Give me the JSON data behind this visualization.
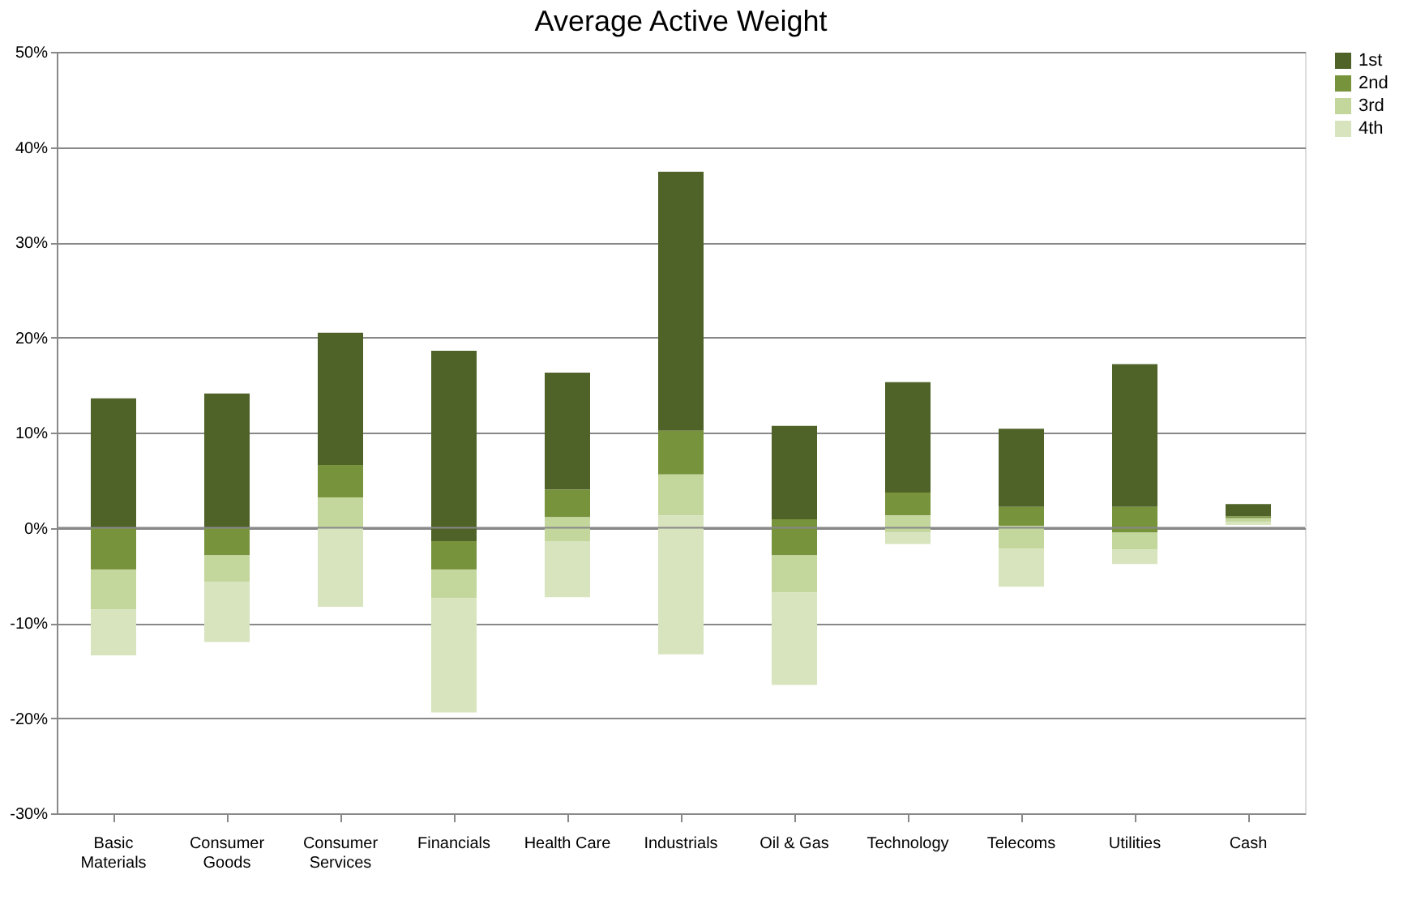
{
  "chart_data": {
    "type": "bar",
    "title": "Average Active Weight",
    "categories": [
      "Basic Materials",
      "Consumer Goods",
      "Consumer Services",
      "Financials",
      "Health Care",
      "Industrials",
      "Oil & Gas",
      "Technology",
      "Telecoms",
      "Utilities",
      "Cash"
    ],
    "series": [
      {
        "name": "1st",
        "color": "#4f6228",
        "base": [
          0,
          0,
          6.6,
          -1.4,
          4.0,
          10.2,
          0.9,
          3.7,
          2.2,
          2.2,
          1.2
        ],
        "values": [
          13.6,
          14.1,
          13.9,
          20.0,
          12.3,
          27.2,
          9.8,
          11.6,
          8.2,
          15.0,
          1.3
        ]
      },
      {
        "name": "2nd",
        "color": "#77933c",
        "base": [
          -4.4,
          -2.9,
          3.2,
          -4.4,
          1.1,
          5.6,
          -2.9,
          1.3,
          0.2,
          -0.5,
          1.0
        ],
        "values": [
          4.4,
          2.9,
          3.4,
          3.0,
          2.9,
          4.6,
          3.8,
          2.4,
          2.0,
          2.7,
          0.2
        ]
      },
      {
        "name": "3rd",
        "color": "#c3d69b",
        "base": [
          -8.6,
          -5.7,
          0,
          -7.4,
          -1.4,
          1.3,
          -6.8,
          -0.5,
          -2.2,
          -2.3,
          0.6
        ],
        "values": [
          4.2,
          2.8,
          3.2,
          3.0,
          2.5,
          4.3,
          3.9,
          1.8,
          2.4,
          1.8,
          0.4
        ]
      },
      {
        "name": "4th",
        "color": "#d7e4bd",
        "base": [
          -13.4,
          -12.0,
          -8.3,
          -19.4,
          -7.3,
          -13.3,
          -16.5,
          -1.7,
          -6.2,
          -3.8,
          0.3
        ],
        "values": [
          4.8,
          6.3,
          8.3,
          12.0,
          5.9,
          14.6,
          9.7,
          1.2,
          4.0,
          1.5,
          0.3
        ]
      }
    ],
    "ylim": [
      -30,
      50
    ],
    "yticks": [
      {
        "value": -30,
        "label": "-30%"
      },
      {
        "value": -20,
        "label": "-20%"
      },
      {
        "value": -10,
        "label": "-10%"
      },
      {
        "value": 0,
        "label": "0%"
      },
      {
        "value": 10,
        "label": "10%"
      },
      {
        "value": 20,
        "label": "20%"
      },
      {
        "value": 30,
        "label": "30%"
      },
      {
        "value": 40,
        "label": "40%"
      },
      {
        "value": 50,
        "label": "50%"
      }
    ],
    "grid": "y",
    "legend": "right"
  }
}
